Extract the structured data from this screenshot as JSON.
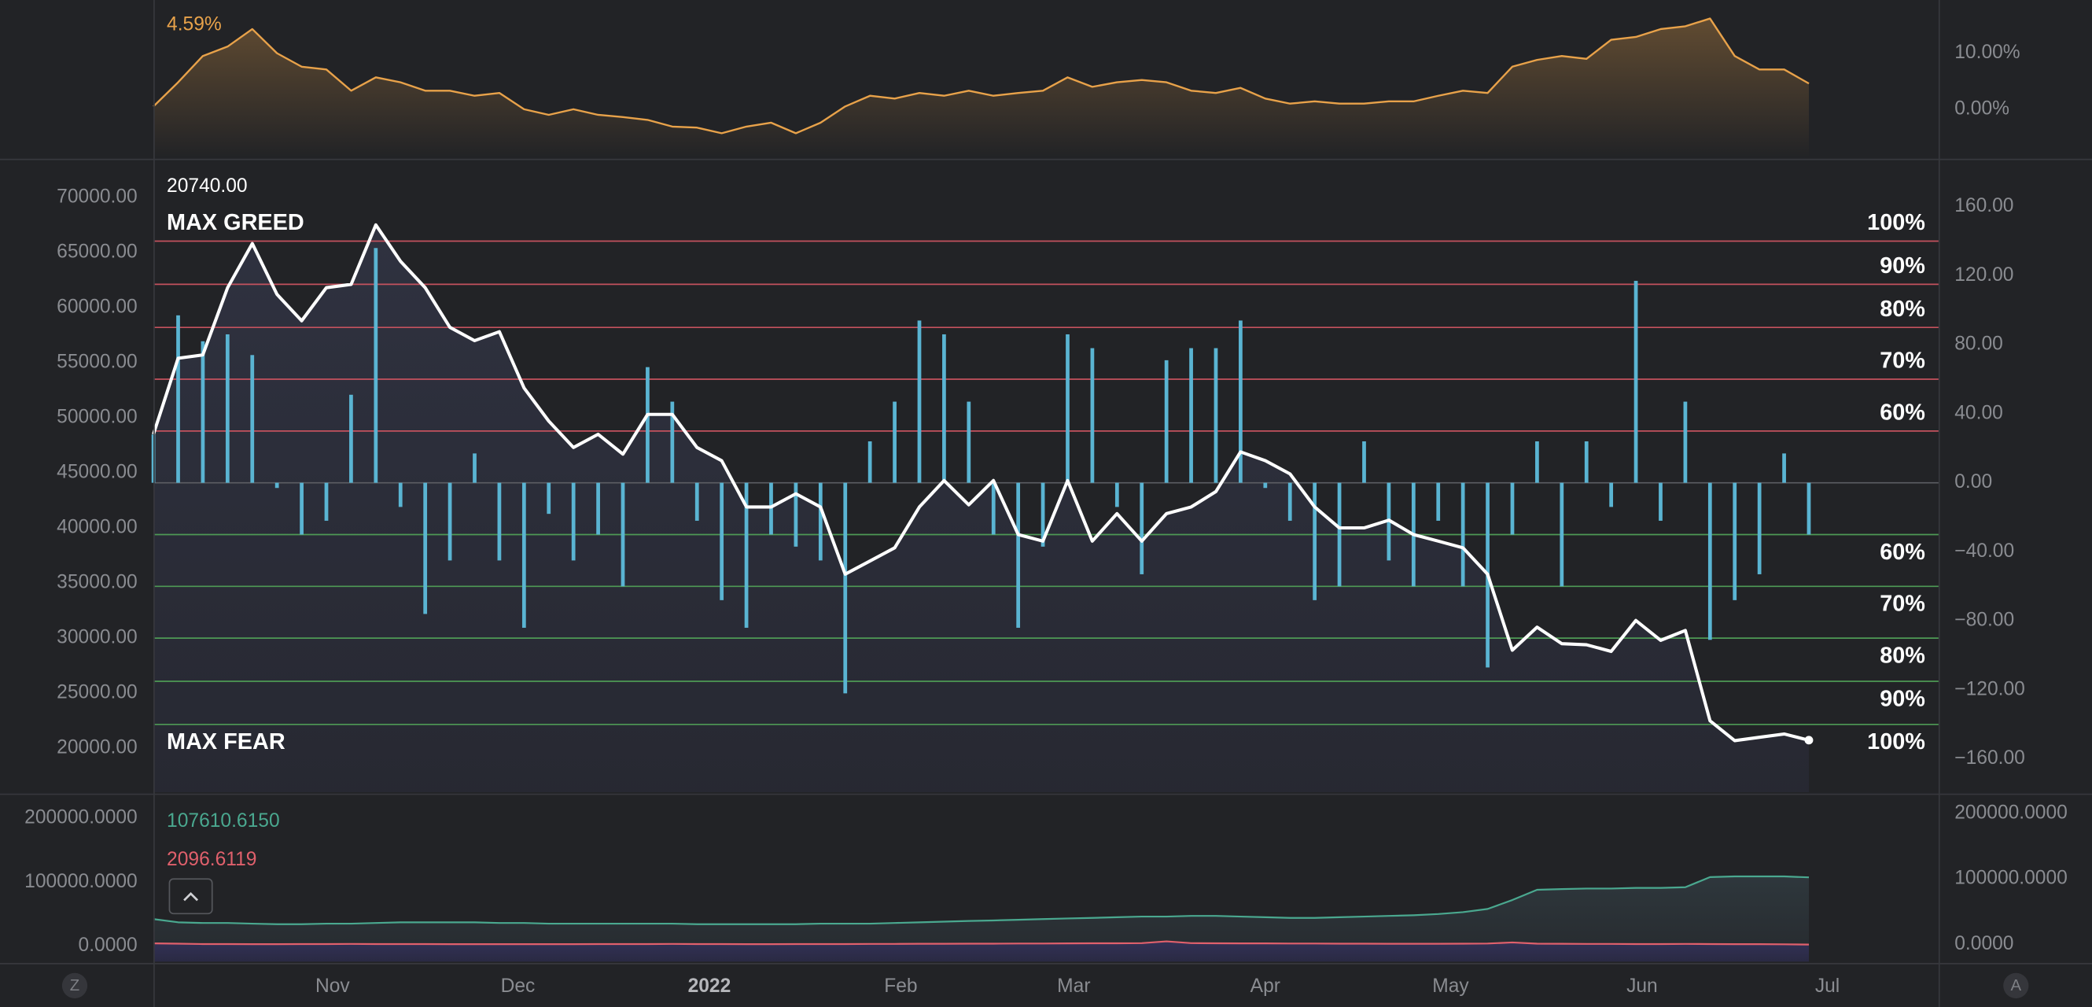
{
  "chart_data": [
    {
      "type": "area",
      "y_axis_side": "right",
      "color": "#e8a24a",
      "last_label": "4.59%",
      "x": [
        0,
        4,
        8,
        12,
        16,
        20,
        24,
        28,
        32,
        36,
        40,
        44,
        48,
        52,
        56,
        60,
        64,
        68,
        72,
        76,
        80,
        84,
        88,
        92,
        96,
        100,
        104,
        108,
        112,
        116,
        120,
        124,
        128,
        132,
        136,
        140,
        144,
        148,
        152,
        156,
        160,
        164,
        168,
        172,
        176,
        180,
        184,
        188,
        192,
        196,
        200,
        204,
        208,
        212,
        216,
        220,
        224,
        228,
        232,
        236,
        240,
        244,
        248,
        252,
        256,
        260,
        264,
        268
      ],
      "xlim": [
        0,
        289
      ],
      "ylim": [
        -8.6,
        19.5
      ],
      "yticks": [
        {
          "value": 10,
          "label": "10.00%"
        },
        {
          "value": 0,
          "label": "0.00%"
        }
      ],
      "values": [
        0.5,
        4.8,
        9.5,
        11.2,
        14.3,
        10,
        7.6,
        7.1,
        3.3,
        5.7,
        4.8,
        3.3,
        3.3,
        2.4,
        2.9,
        0,
        -1,
        0,
        -1,
        -1.4,
        -1.9,
        -3.1,
        -3.3,
        -4.3,
        -3.1,
        -2.4,
        -4.3,
        -2.4,
        0.5,
        2.4,
        1.9,
        2.9,
        2.4,
        3.3,
        2.4,
        2.9,
        3.3,
        5.7,
        4,
        4.8,
        5.2,
        4.8,
        3.3,
        2.9,
        3.8,
        1.9,
        1,
        1.4,
        1,
        1,
        1.4,
        1.4,
        2.4,
        3.3,
        2.9,
        7.6,
        8.8,
        9.5,
        9,
        12.4,
        12.9,
        14.3,
        14.8,
        16.2,
        9.5,
        7.1,
        7.1,
        4.59
      ]
    },
    {
      "type": "combo",
      "max_greed_label": "MAX GREED",
      "max_fear_label": "MAX FEAR",
      "x": [
        0,
        4,
        8,
        12,
        16,
        20,
        24,
        28,
        32,
        36,
        40,
        44,
        48,
        52,
        56,
        60,
        64,
        68,
        72,
        76,
        80,
        84,
        88,
        92,
        96,
        100,
        104,
        108,
        112,
        116,
        120,
        124,
        128,
        132,
        136,
        140,
        144,
        148,
        152,
        156,
        160,
        164,
        168,
        172,
        176,
        180,
        184,
        188,
        192,
        196,
        200,
        204,
        208,
        212,
        216,
        220,
        224,
        228,
        232,
        236,
        240,
        244,
        248,
        252,
        256,
        260,
        264,
        268
      ],
      "xlim": [
        0,
        289
      ],
      "ylim": [
        16014,
        73261
      ],
      "y2lim": [
        -179.3,
        186.2
      ],
      "yticks": [
        {
          "value": 70000,
          "label": "70000.00"
        },
        {
          "value": 65000,
          "label": "65000.00"
        },
        {
          "value": 60000,
          "label": "60000.00"
        },
        {
          "value": 55000,
          "label": "55000.00"
        },
        {
          "value": 50000,
          "label": "50000.00"
        },
        {
          "value": 45000,
          "label": "45000.00"
        },
        {
          "value": 40000,
          "label": "40000.00"
        },
        {
          "value": 35000,
          "label": "35000.00"
        },
        {
          "value": 30000,
          "label": "30000.00"
        },
        {
          "value": 25000,
          "label": "25000.00"
        },
        {
          "value": 20000,
          "label": "20000.00"
        }
      ],
      "y2ticks": [
        {
          "value": 160,
          "label": "160.00"
        },
        {
          "value": 120,
          "label": "120.00"
        },
        {
          "value": 80,
          "label": "80.00"
        },
        {
          "value": 40,
          "label": "40.00"
        },
        {
          "value": 0,
          "label": "0.00"
        },
        {
          "value": -40,
          "label": "−40.00"
        },
        {
          "value": -80,
          "label": "−80.00"
        },
        {
          "value": -120,
          "label": "−120.00"
        },
        {
          "value": -160,
          "label": "−160.00"
        }
      ],
      "levels": [
        {
          "value": 140,
          "label": "100%",
          "color": "#c4525e"
        },
        {
          "value": 115,
          "label": "90%",
          "color": "#c4525e"
        },
        {
          "value": 90,
          "label": "80%",
          "color": "#c4525e"
        },
        {
          "value": 60,
          "label": "70%",
          "color": "#c4525e"
        },
        {
          "value": 30,
          "label": "60%",
          "color": "#c4525e"
        },
        {
          "value": -30,
          "label": "60%",
          "color": "#4e9a55"
        },
        {
          "value": -60,
          "label": "70%",
          "color": "#4e9a55"
        },
        {
          "value": -90,
          "label": "80%",
          "color": "#4e9a55"
        },
        {
          "value": -115,
          "label": "90%",
          "color": "#4e9a55"
        },
        {
          "value": -140,
          "label": "100%",
          "color": "#4e9a55"
        }
      ],
      "series": [
        {
          "type": "line",
          "color": "#ffffff",
          "last_label": "20740.00",
          "values": [
            48500,
            55400,
            55700,
            61800,
            65800,
            61200,
            58800,
            61800,
            62100,
            67500,
            64200,
            61800,
            58200,
            57000,
            57800,
            52700,
            49700,
            47300,
            48500,
            46700,
            50300,
            50300,
            47300,
            46100,
            41900,
            41900,
            43100,
            41900,
            35800,
            37000,
            38200,
            41900,
            44300,
            42100,
            44300,
            39400,
            38800,
            44300,
            38800,
            41300,
            38800,
            41300,
            41900,
            43300,
            46900,
            46100,
            44900,
            41900,
            40000,
            40000,
            40700,
            39400,
            38800,
            38200,
            35800,
            28900,
            31000,
            29500,
            29400,
            28800,
            31600,
            29800,
            30700,
            22500,
            20700,
            21000,
            21300,
            20740
          ]
        },
        {
          "type": "bar",
          "axis": "y2",
          "color": "#5ab4d2",
          "values": [
            28,
            97,
            82,
            86,
            74,
            -3,
            -30,
            -22,
            51,
            136,
            -14,
            -76,
            -45,
            17,
            -45,
            -84,
            -18,
            -45,
            -30,
            -60,
            67,
            47,
            -22,
            -68,
            -84,
            -30,
            -37,
            -45,
            -122,
            24,
            47,
            94,
            86,
            47,
            -30,
            -84,
            -37,
            86,
            78,
            -14,
            -53,
            71,
            78,
            78,
            94,
            -3,
            -22,
            -68,
            -60,
            24,
            -45,
            -60,
            -22,
            -60,
            -107,
            -30,
            24,
            -60,
            24,
            -14,
            117,
            -22,
            47,
            -91,
            -68,
            -53,
            17,
            -30
          ]
        }
      ]
    },
    {
      "type": "combo",
      "x": [
        0,
        4,
        8,
        12,
        16,
        20,
        24,
        28,
        32,
        36,
        40,
        44,
        48,
        52,
        56,
        60,
        64,
        68,
        72,
        76,
        80,
        84,
        88,
        92,
        96,
        100,
        104,
        108,
        112,
        116,
        120,
        124,
        128,
        132,
        136,
        140,
        144,
        148,
        152,
        156,
        160,
        164,
        168,
        172,
        176,
        180,
        184,
        188,
        192,
        196,
        200,
        204,
        208,
        212,
        216,
        220,
        224,
        228,
        232,
        236,
        240,
        244,
        248,
        252,
        256,
        260,
        264,
        268
      ],
      "xlim": [
        0,
        289
      ],
      "ylim": [
        -24700,
        234700
      ],
      "y2lim": [
        -26000,
        226000
      ],
      "yticks": [
        {
          "value": 200000,
          "label": "200000.0000"
        },
        {
          "value": 100000,
          "label": "100000.0000"
        },
        {
          "value": 0,
          "label": "0.0000"
        }
      ],
      "y2ticks": [
        {
          "value": 200000,
          "label": "200000.0000"
        },
        {
          "value": 100000,
          "label": "100000.0000"
        },
        {
          "value": 0,
          "label": "0.0000"
        }
      ],
      "xticks": [
        {
          "value": 29,
          "label": "Nov"
        },
        {
          "value": 59,
          "label": "Dec"
        },
        {
          "value": 90,
          "label": "2022",
          "bold": true
        },
        {
          "value": 121,
          "label": "Feb"
        },
        {
          "value": 149,
          "label": "Mar"
        },
        {
          "value": 180,
          "label": "Apr"
        },
        {
          "value": 210,
          "label": "May"
        },
        {
          "value": 241,
          "label": "Jun"
        },
        {
          "value": 271,
          "label": "Jul"
        }
      ],
      "series": [
        {
          "type": "area",
          "color": "#4aa88f",
          "last_label": "107610.6150",
          "values": [
            42000,
            37000,
            36000,
            36000,
            35000,
            34000,
            34000,
            35000,
            35000,
            36000,
            37000,
            37000,
            37000,
            37000,
            36000,
            36000,
            35000,
            35000,
            35000,
            35000,
            35000,
            35000,
            34000,
            34000,
            34000,
            34000,
            34000,
            35000,
            35000,
            35000,
            36000,
            37000,
            38000,
            39000,
            40000,
            41000,
            42000,
            43000,
            44000,
            45000,
            46000,
            46000,
            47000,
            47000,
            46000,
            45000,
            44000,
            44000,
            45000,
            46000,
            47000,
            48000,
            50000,
            53000,
            58000,
            72000,
            88000,
            89000,
            90000,
            90000,
            91000,
            91000,
            92000,
            108000,
            109000,
            109000,
            109000,
            107610.615
          ]
        },
        {
          "type": "area",
          "color": "#e0606c",
          "last_label": "2096.6119",
          "values": [
            4000,
            3500,
            3000,
            3000,
            2800,
            2800,
            3000,
            3000,
            3200,
            3000,
            3000,
            3000,
            2800,
            2800,
            2600,
            2600,
            2800,
            2800,
            3000,
            3000,
            3000,
            3200,
            3000,
            3000,
            2800,
            2800,
            3000,
            3000,
            3000,
            3200,
            3200,
            3400,
            3400,
            3600,
            3600,
            3800,
            3800,
            4000,
            4200,
            4200,
            4400,
            7000,
            4400,
            4200,
            4000,
            4000,
            3800,
            3800,
            3600,
            3600,
            3400,
            3400,
            3400,
            3600,
            3800,
            5500,
            3600,
            3400,
            3200,
            3200,
            3000,
            3000,
            3200,
            3000,
            2800,
            2600,
            2400,
            2096.6119
          ]
        }
      ]
    }
  ],
  "buttons": {
    "left": "Z",
    "right": "A"
  }
}
